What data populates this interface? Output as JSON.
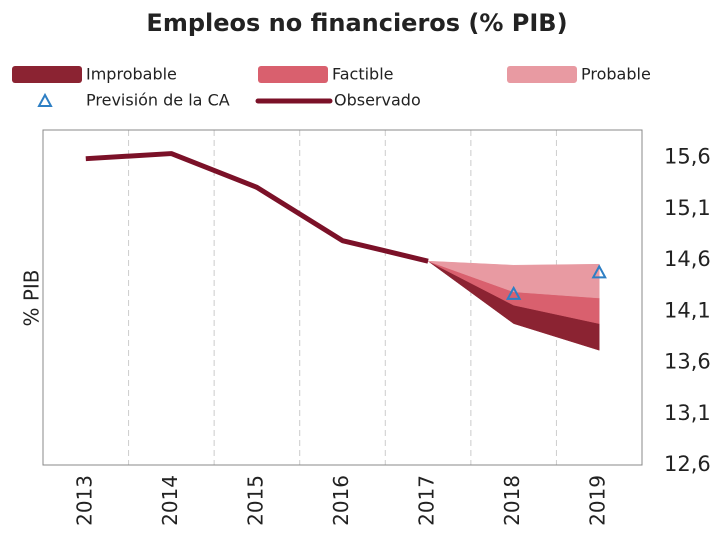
{
  "chart_data": {
    "type": "fan",
    "title": "Empleos no financieros (% PIB)",
    "y_axis_label": "% PIB",
    "categories": [
      "2013",
      "2014",
      "2015",
      "2016",
      "2017",
      "2018",
      "2019"
    ],
    "ylim": [
      12.6,
      15.87
    ],
    "yticks": [
      {
        "value": 12.6,
        "label": "12,6"
      },
      {
        "value": 13.1,
        "label": "13,1"
      },
      {
        "value": 13.6,
        "label": "13,6"
      },
      {
        "value": 14.1,
        "label": "14,1"
      },
      {
        "value": 14.6,
        "label": "14,6"
      },
      {
        "value": 15.1,
        "label": "15,1"
      },
      {
        "value": 15.6,
        "label": "15,6"
      }
    ],
    "bands": [
      {
        "name": "Improbable",
        "color": "#8b2332",
        "lower": [
          null,
          null,
          null,
          null,
          14.59,
          13.98,
          13.72
        ],
        "upper": [
          null,
          null,
          null,
          null,
          14.59,
          14.16,
          13.98
        ]
      },
      {
        "name": "Factible",
        "color": "#d9606e",
        "lower": [
          null,
          null,
          null,
          null,
          14.59,
          14.16,
          13.98
        ],
        "upper": [
          null,
          null,
          null,
          null,
          14.59,
          14.29,
          14.23
        ]
      },
      {
        "name": "Probable",
        "color": "#e89aa2",
        "lower": [
          null,
          null,
          null,
          null,
          14.59,
          14.29,
          14.23
        ],
        "upper": [
          null,
          null,
          null,
          null,
          14.59,
          14.55,
          14.56
        ]
      }
    ],
    "series": [
      {
        "name": "Previsión de la CA",
        "kind": "marker",
        "color": "#2e7fc4",
        "values": [
          null,
          null,
          null,
          null,
          null,
          14.27,
          14.48
        ]
      },
      {
        "name": "Observado",
        "kind": "line",
        "color": "#7b1128",
        "values": [
          15.59,
          15.64,
          15.31,
          14.79,
          14.59,
          null,
          null
        ]
      }
    ]
  }
}
